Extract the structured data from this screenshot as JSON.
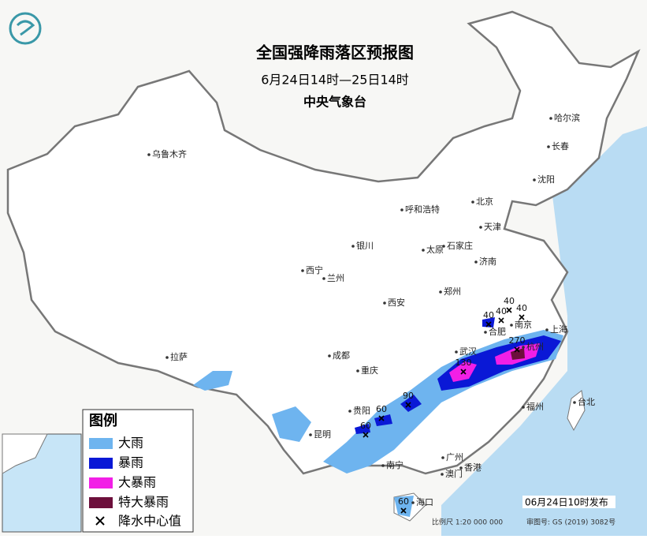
{
  "header": {
    "title": "全国强降雨落区预报图",
    "period": "6月24日14时—25日14时",
    "issuer": "中央气象台"
  },
  "cities": [
    "乌鲁木齐",
    "哈尔滨",
    "长春",
    "沈阳",
    "呼和浩特",
    "北京",
    "天津",
    "石家庄",
    "太原",
    "银川",
    "西宁",
    "兰州",
    "济南",
    "郑州",
    "西安",
    "合肥",
    "南京",
    "上海",
    "武汉",
    "杭州",
    "成都",
    "重庆",
    "拉萨",
    "贵阳",
    "昆明",
    "南宁",
    "广州",
    "福州",
    "台北",
    "香港",
    "澳门",
    "海口"
  ],
  "rainfall_centers": [
    40,
    40,
    40,
    40,
    130,
    270,
    90,
    60,
    60,
    60
  ],
  "legend": {
    "title": "图例",
    "items": [
      "大雨",
      "暴雨",
      "大暴雨",
      "特大暴雨",
      "降水中心值"
    ]
  },
  "footer": {
    "issued": "06月24日10时发布",
    "scale": "比例尺 1:20 000 000",
    "review": "审图号: GS (2019) 3082号"
  }
}
